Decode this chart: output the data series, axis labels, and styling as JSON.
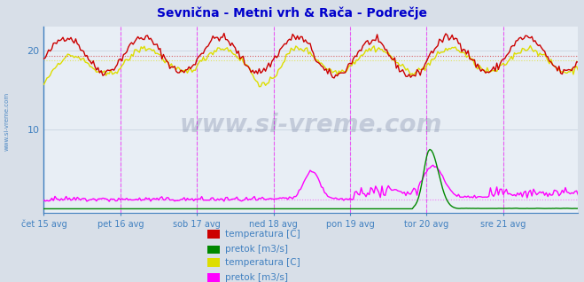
{
  "title": "Sevnična - Metni vrh & Rača - Podrečje",
  "title_color": "#0000cc",
  "background_color": "#d8dfe8",
  "plot_bg_color": "#e8eef5",
  "grid_color": "#b8c8d8",
  "tick_color": "#4080c0",
  "xlabel_color": "#4080c0",
  "ylim": [
    -0.5,
    23
  ],
  "yticks": [
    10,
    20
  ],
  "n_points": 336,
  "x_tick_labels": [
    "čet 15 avg",
    "pet 16 avg",
    "sob 17 avg",
    "ned 18 avg",
    "pon 19 avg",
    "tor 20 avg",
    "sre 21 avg"
  ],
  "x_tick_positions": [
    0,
    48,
    96,
    144,
    192,
    240,
    288
  ],
  "vline_positions": [
    48,
    96,
    144,
    192,
    240,
    288
  ],
  "hline_temp1": 19.3,
  "hline_temp2": 18.8,
  "hline_flow2": 1.2,
  "colors": {
    "temp1": "#cc0000",
    "flow1": "#008800",
    "temp2": "#dddd00",
    "flow2": "#ff00ff"
  },
  "legend_labels": [
    "temperatura [C]",
    "pretok [m3/s]",
    "temperatura [C]",
    "pretok [m3/s]"
  ],
  "legend_colors": [
    "#cc0000",
    "#008800",
    "#dddd00",
    "#ff00ff"
  ],
  "legend_text_color": "#4080c0",
  "watermark": "www.si-vreme.com",
  "watermark_color": "#203060",
  "watermark_alpha": 0.18,
  "side_text": "www.si-vreme.com",
  "side_text_color": "#4080c0",
  "arrow_color": "#cc0000"
}
